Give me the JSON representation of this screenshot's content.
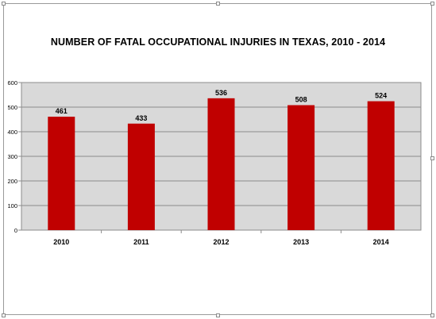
{
  "chart_data": {
    "type": "bar",
    "title": "NUMBER OF FATAL OCCUPATIONAL INJURIES IN TEXAS, 2010 - 2014",
    "categories": [
      "2010",
      "2011",
      "2012",
      "2013",
      "2014"
    ],
    "values": [
      461,
      433,
      536,
      508,
      524
    ],
    "data_labels": [
      "461",
      "433",
      "536",
      "508",
      "524"
    ],
    "y_ticks": [
      "0",
      "100",
      "200",
      "300",
      "400",
      "500",
      "600"
    ],
    "ylim": [
      0,
      600
    ],
    "xlabel": "",
    "ylabel": "",
    "grid": true,
    "legend": "none",
    "bar_color": "#c00000",
    "plot_background": "#d9d9d9"
  }
}
